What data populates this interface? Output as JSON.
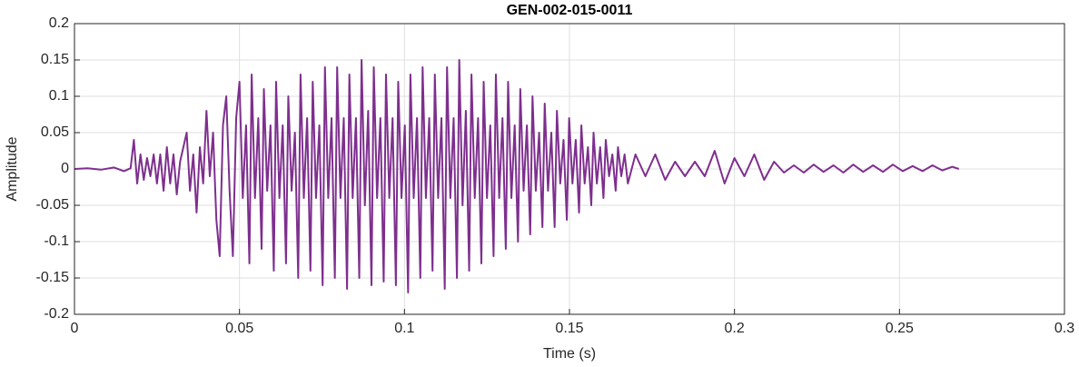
{
  "chart_data": {
    "type": "line",
    "title": "GEN-002-015-0011",
    "x_label": "Time (s)",
    "y_label": "Amplitude",
    "xlim": [
      0,
      0.3
    ],
    "ylim": [
      -0.2,
      0.2
    ],
    "xticks": [
      0,
      0.05,
      0.1,
      0.15,
      0.2,
      0.25,
      0.3
    ],
    "yticks": [
      -0.2,
      -0.15,
      -0.1,
      -0.05,
      0,
      0.05,
      0.1,
      0.15,
      0.2
    ],
    "grid": true,
    "x": [
      0,
      0.004,
      0.008,
      0.012,
      0.015,
      0.017,
      0.018,
      0.019,
      0.02,
      0.021,
      0.022,
      0.023,
      0.024,
      0.025,
      0.026,
      0.027,
      0.028,
      0.029,
      0.03,
      0.031,
      0.032,
      0.033,
      0.034,
      0.035,
      0.036,
      0.037,
      0.038,
      0.039,
      0.04,
      0.041,
      0.042,
      0.043,
      0.044,
      0.045,
      0.046,
      0.047,
      0.048,
      0.049,
      0.05,
      0.051,
      0.052,
      0.053,
      0.0537,
      0.0547,
      0.0557,
      0.0567,
      0.0574,
      0.0584,
      0.0594,
      0.0604,
      0.0611,
      0.0621,
      0.0631,
      0.0641,
      0.0648,
      0.0658,
      0.0668,
      0.0678,
      0.0685,
      0.0695,
      0.0705,
      0.0715,
      0.0722,
      0.0732,
      0.0742,
      0.0752,
      0.0759,
      0.0769,
      0.0779,
      0.0789,
      0.0796,
      0.0806,
      0.0816,
      0.0826,
      0.0833,
      0.0843,
      0.0853,
      0.0863,
      0.087,
      0.088,
      0.089,
      0.09,
      0.0907,
      0.0917,
      0.0927,
      0.0937,
      0.0944,
      0.0954,
      0.0964,
      0.0974,
      0.0981,
      0.0991,
      0.1001,
      0.1011,
      0.1018,
      0.1028,
      0.1038,
      0.1048,
      0.1055,
      0.1065,
      0.1075,
      0.1085,
      0.1092,
      0.1102,
      0.1112,
      0.1122,
      0.1129,
      0.1139,
      0.1149,
      0.1159,
      0.1166,
      0.1176,
      0.1186,
      0.1196,
      0.1203,
      0.1213,
      0.1223,
      0.1233,
      0.124,
      0.125,
      0.126,
      0.127,
      0.1277,
      0.1287,
      0.1297,
      0.1307,
      0.1314,
      0.1324,
      0.1334,
      0.1344,
      0.1351,
      0.1361,
      0.1371,
      0.1381,
      0.1388,
      0.1398,
      0.1408,
      0.1418,
      0.1425,
      0.1435,
      0.1445,
      0.1455,
      0.1462,
      0.1472,
      0.1482,
      0.1492,
      0.1499,
      0.1509,
      0.1519,
      0.1529,
      0.1536,
      0.1546,
      0.1556,
      0.1566,
      0.1573,
      0.1583,
      0.1593,
      0.1603,
      0.161,
      0.162,
      0.163,
      0.164,
      0.1647,
      0.1657,
      0.1667,
      0.1677,
      0.17,
      0.173,
      0.176,
      0.179,
      0.182,
      0.185,
      0.188,
      0.191,
      0.194,
      0.197,
      0.2,
      0.203,
      0.206,
      0.209,
      0.212,
      0.215,
      0.218,
      0.221,
      0.224,
      0.227,
      0.23,
      0.233,
      0.236,
      0.239,
      0.242,
      0.245,
      0.248,
      0.251,
      0.254,
      0.257,
      0.26,
      0.263,
      0.266,
      0.268
    ],
    "series": [
      {
        "color": "#7e2f8e",
        "values": [
          0,
          0.001,
          -0.001,
          0.002,
          -0.003,
          0.001,
          0.04,
          -0.02,
          0.02,
          -0.015,
          0.015,
          -0.01,
          0.02,
          -0.02,
          0.02,
          -0.03,
          0.03,
          -0.02,
          0.02,
          -0.035,
          0.01,
          0.03,
          0.05,
          -0.03,
          0.02,
          -0.06,
          0.03,
          -0.02,
          0.08,
          -0.01,
          0.05,
          -0.07,
          -0.12,
          0.06,
          0.1,
          -0.03,
          -0.12,
          0.07,
          0.12,
          -0.04,
          0.06,
          -0.13,
          0.13,
          -0.04,
          0.07,
          -0.11,
          0.11,
          -0.03,
          0.06,
          -0.14,
          0.12,
          -0.04,
          0.06,
          -0.13,
          0.1,
          -0.03,
          0.05,
          -0.15,
          0.13,
          -0.04,
          0.07,
          -0.14,
          0.12,
          -0.04,
          0.06,
          -0.16,
          0.14,
          -0.04,
          0.07,
          -0.15,
          0.14,
          -0.04,
          0.07,
          -0.165,
          0.13,
          -0.04,
          0.07,
          -0.15,
          0.15,
          -0.05,
          0.08,
          -0.16,
          0.14,
          -0.04,
          0.07,
          -0.155,
          0.13,
          -0.04,
          0.07,
          -0.16,
          0.12,
          -0.04,
          0.06,
          -0.17,
          0.13,
          -0.04,
          0.07,
          -0.15,
          0.14,
          -0.04,
          0.07,
          -0.14,
          0.13,
          -0.04,
          0.07,
          -0.165,
          0.14,
          -0.04,
          0.07,
          -0.15,
          0.15,
          -0.05,
          0.08,
          -0.14,
          0.13,
          -0.04,
          0.07,
          -0.13,
          0.12,
          -0.04,
          0.06,
          -0.12,
          0.13,
          -0.04,
          0.07,
          -0.11,
          0.12,
          -0.04,
          0.06,
          -0.1,
          0.11,
          -0.03,
          0.06,
          -0.09,
          0.1,
          -0.03,
          0.05,
          -0.08,
          0.09,
          -0.03,
          0.05,
          -0.08,
          0.08,
          -0.02,
          0.04,
          -0.07,
          0.07,
          -0.02,
          0.04,
          -0.06,
          0.06,
          -0.02,
          0.03,
          -0.05,
          0.05,
          -0.02,
          0.03,
          -0.04,
          0.04,
          -0.01,
          0.02,
          -0.03,
          0.03,
          -0.01,
          0.02,
          -0.02,
          0.02,
          -0.01,
          0.02,
          -0.015,
          0.01,
          -0.01,
          0.01,
          -0.01,
          0.025,
          -0.02,
          0.015,
          -0.01,
          0.02,
          -0.015,
          0.01,
          -0.005,
          0.005,
          -0.005,
          0.006,
          -0.004,
          0.005,
          -0.005,
          0.006,
          -0.004,
          0.005,
          -0.004,
          0.006,
          -0.003,
          0.004,
          -0.003,
          0.005,
          -0.002,
          0.003,
          0
        ]
      }
    ]
  }
}
